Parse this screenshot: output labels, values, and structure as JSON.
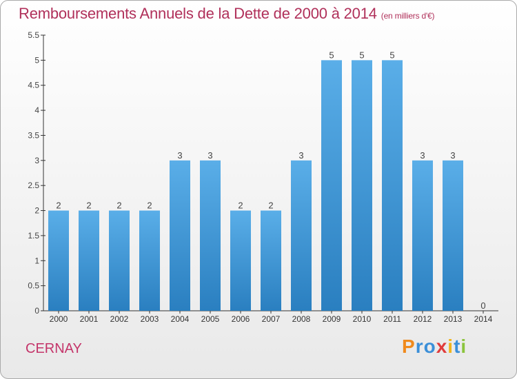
{
  "title": "Remboursements Annuels de la Dette de 2000 à 2014",
  "unit": "(en milliers d'€)",
  "city": "CERNAY",
  "logo": "Proxiti",
  "colors": {
    "title": "#b0305a",
    "bar_top": "#5aaee8",
    "bar_bottom": "#2a7fc0",
    "logo_letters": [
      "#f08a1c",
      "#3b8fd8",
      "#3b8fd8",
      "#e03c3c",
      "#f0b41c",
      "#3b8fd8",
      "#8bc43c"
    ]
  },
  "chart_data": {
    "type": "bar",
    "categories": [
      "2000",
      "2001",
      "2002",
      "2003",
      "2004",
      "2005",
      "2006",
      "2007",
      "2008",
      "2009",
      "2010",
      "2011",
      "2012",
      "2013",
      "2014"
    ],
    "values": [
      2,
      2,
      2,
      2,
      3,
      3,
      2,
      2,
      3,
      5,
      5,
      5,
      3,
      3,
      0
    ],
    "data_labels": [
      "2",
      "2",
      "2",
      "2",
      "3",
      "3",
      "2",
      "2",
      "3",
      "5",
      "5",
      "5",
      "3",
      "3",
      "0"
    ],
    "yticks": [
      "0",
      "0.5",
      "1",
      "1.5",
      "2",
      "2.5",
      "3",
      "3.5",
      "4",
      "4.5",
      "5",
      "5.5"
    ],
    "ylim": [
      0,
      5.5
    ],
    "grid": false
  }
}
